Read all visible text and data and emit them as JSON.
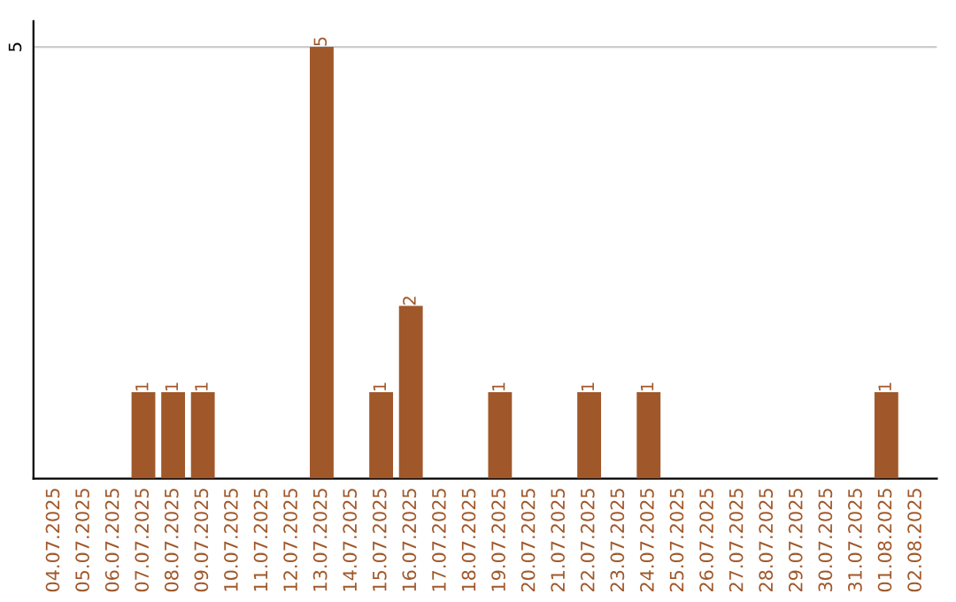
{
  "chart_data": {
    "type": "bar",
    "categories": [
      "04.07.2025",
      "05.07.2025",
      "06.07.2025",
      "07.07.2025",
      "08.07.2025",
      "09.07.2025",
      "10.07.2025",
      "11.07.2025",
      "12.07.2025",
      "13.07.2025",
      "14.07.2025",
      "15.07.2025",
      "16.07.2025",
      "17.07.2025",
      "18.07.2025",
      "19.07.2025",
      "20.07.2025",
      "21.07.2025",
      "22.07.2025",
      "23.07.2025",
      "24.07.2025",
      "25.07.2025",
      "26.07.2025",
      "27.07.2025",
      "28.07.2025",
      "29.07.2025",
      "30.07.2025",
      "31.07.2025",
      "01.08.2025",
      "02.08.2025"
    ],
    "values": [
      null,
      null,
      null,
      1,
      1,
      1,
      null,
      null,
      null,
      5,
      null,
      1,
      2,
      null,
      null,
      1,
      null,
      null,
      1,
      null,
      1,
      null,
      null,
      null,
      null,
      null,
      null,
      null,
      1,
      null
    ],
    "color": "#a0582a",
    "ylim": [
      0,
      5.3
    ],
    "yticks": [
      5
    ],
    "grid": "y",
    "data_labels": true
  }
}
